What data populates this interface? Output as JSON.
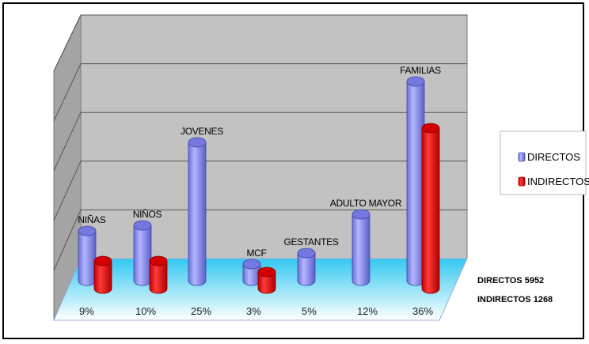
{
  "chart_data": {
    "type": "bar",
    "style": "3d-cylinder",
    "categories": [
      "NIÑAS",
      "NIÑOS",
      "JOVENES",
      "MCF",
      "GESTANTES",
      "ADULTO MAYOR",
      "FAMILIAS"
    ],
    "category_percent_labels": [
      "9%",
      "10%",
      "25%",
      "3%",
      "5%",
      "12%",
      "36%"
    ],
    "series": [
      {
        "name": "DIRECTOS",
        "color": "#8c8ff0",
        "values": [
          9,
          10,
          25,
          3,
          5,
          12,
          36
        ]
      },
      {
        "name": "INDIRECTOS",
        "color": "#ee1111",
        "values": [
          5,
          5,
          null,
          3,
          null,
          null,
          29
        ]
      }
    ],
    "ylim": [
      0,
      44
    ],
    "grid": true,
    "legend_position": "right",
    "totals": [
      {
        "label": "DIRECTOS",
        "value": "5952"
      },
      {
        "label": "INDIRECTOS",
        "value": "1268"
      }
    ]
  }
}
